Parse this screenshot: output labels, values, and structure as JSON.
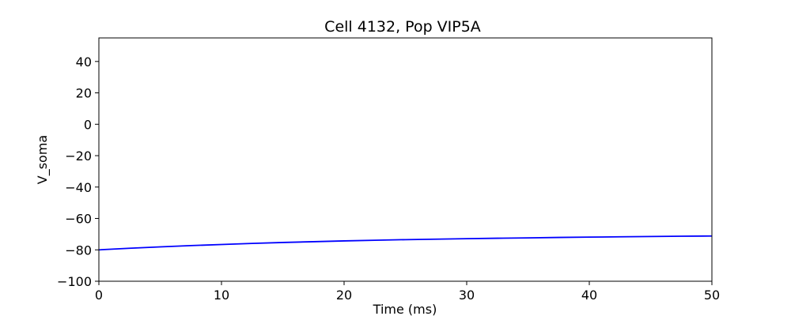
{
  "chart_data": {
    "type": "line",
    "title": "Cell 4132, Pop VIP5A",
    "xlabel": "Time (ms)",
    "ylabel": "V_soma",
    "xlim": [
      0,
      50
    ],
    "ylim": [
      -100,
      55
    ],
    "xticks": [
      0,
      10,
      20,
      30,
      40,
      50
    ],
    "yticks": [
      -100,
      -80,
      -60,
      -40,
      -20,
      0,
      20,
      40
    ],
    "grid": false,
    "series": [
      {
        "color": "#0000ff",
        "x": [
          0,
          2.5,
          5,
          7.5,
          10,
          12.5,
          15,
          17.5,
          20,
          22.5,
          25,
          27.5,
          30,
          32.5,
          35,
          37.5,
          40,
          42.5,
          45,
          47.5,
          50
        ],
        "y": [
          -80.0,
          -79.0,
          -78.1,
          -77.3,
          -76.6,
          -75.9,
          -75.3,
          -74.8,
          -74.3,
          -73.9,
          -73.5,
          -73.2,
          -72.9,
          -72.6,
          -72.4,
          -72.1,
          -71.9,
          -71.7,
          -71.5,
          -71.3,
          -71.2
        ]
      }
    ]
  }
}
